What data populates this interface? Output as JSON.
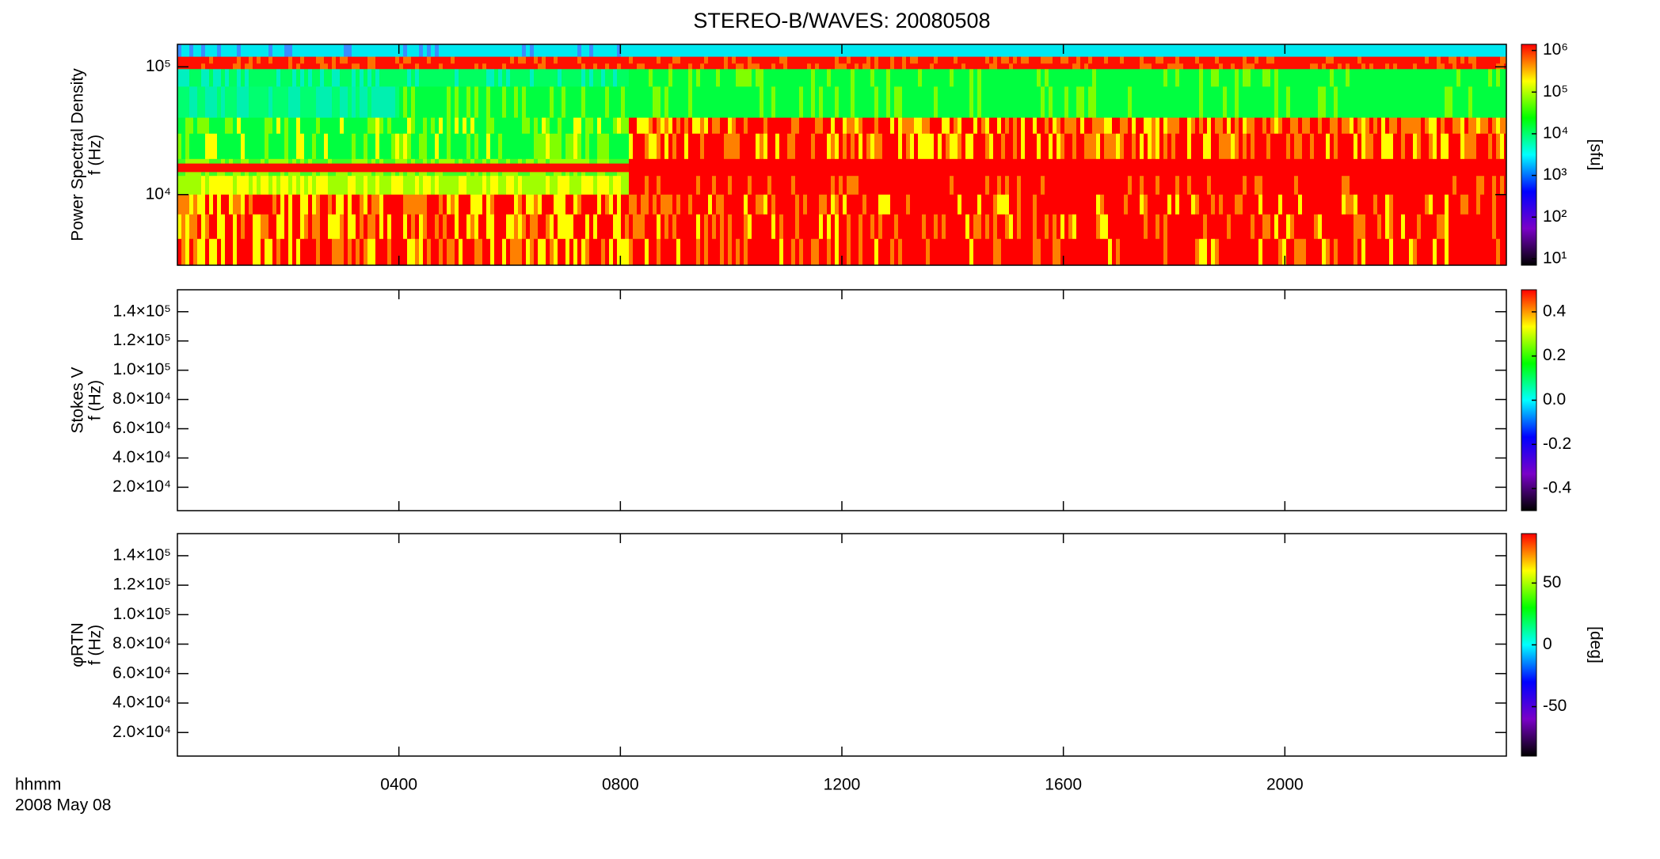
{
  "chart_data": [
    {
      "type": "spectrogram",
      "title": "STEREO-B/WAVES: 20080508",
      "ylabel": [
        "Power Spectral Density",
        "f (Hz)"
      ],
      "ylog": true,
      "ylim": [
        2800,
        150000
      ],
      "yticks": [
        {
          "value": 10000,
          "label": "10⁴"
        },
        {
          "value": 100000,
          "label": "10⁵"
        }
      ],
      "xlim": [
        0,
        24
      ],
      "xticks": [
        4,
        8,
        12,
        16,
        20
      ],
      "colorbar": {
        "clog": true,
        "clim": [
          7,
          1400000
        ],
        "cticks": [
          {
            "value": 10,
            "label": "10¹"
          },
          {
            "value": 100,
            "label": "10²"
          },
          {
            "value": 1000,
            "label": "10³"
          },
          {
            "value": 10000,
            "label": "10⁴"
          },
          {
            "value": 100000,
            "label": "10⁵"
          },
          {
            "value": 1000000,
            "label": "10⁶"
          }
        ],
        "label": "[sfu]",
        "colors": [
          "#000000",
          "#7a00c8",
          "#0000ff",
          "#00ffff",
          "#00ff00",
          "#ffff00",
          "#ff0000"
        ]
      }
    },
    {
      "type": "spectrogram",
      "ylabel": [
        "Stokes V",
        "f (Hz)"
      ],
      "ylog": false,
      "ylim": [
        4000,
        155000
      ],
      "yticks": [
        {
          "value": 20000,
          "label": "2.0×10⁴"
        },
        {
          "value": 40000,
          "label": "4.0×10⁴"
        },
        {
          "value": 60000,
          "label": "6.0×10⁴"
        },
        {
          "value": 80000,
          "label": "8.0×10⁴"
        },
        {
          "value": 100000,
          "label": "1.0×10⁵"
        },
        {
          "value": 120000,
          "label": "1.2×10⁵"
        },
        {
          "value": 140000,
          "label": "1.4×10⁵"
        }
      ],
      "xlim": [
        0,
        24
      ],
      "xticks": [
        4,
        8,
        12,
        16,
        20
      ],
      "colorbar": {
        "clog": false,
        "clim": [
          -0.5,
          0.5
        ],
        "cticks": [
          -0.4,
          -0.2,
          {
            "value": 0,
            "label": "0.0"
          },
          0.2,
          0.4
        ],
        "colors": [
          "#000000",
          "#7a00c8",
          "#0000ff",
          "#00ffff",
          "#00ff00",
          "#ffff00",
          "#ff0000"
        ]
      }
    },
    {
      "type": "spectrogram",
      "ylabel": [
        "φRTN",
        "f (Hz)"
      ],
      "ylog": false,
      "ylim": [
        4000,
        155000
      ],
      "yticks": [
        {
          "value": 20000,
          "label": "2.0×10⁴"
        },
        {
          "value": 40000,
          "label": "4.0×10⁴"
        },
        {
          "value": 60000,
          "label": "6.0×10⁴"
        },
        {
          "value": 80000,
          "label": "8.0×10⁴"
        },
        {
          "value": 100000,
          "label": "1.0×10⁵"
        },
        {
          "value": 120000,
          "label": "1.2×10⁵"
        },
        {
          "value": 140000,
          "label": "1.4×10⁵"
        }
      ],
      "xlim": [
        0,
        24
      ],
      "xticks": [
        {
          "value": 4,
          "label": "0400"
        },
        {
          "value": 8,
          "label": "0800"
        },
        {
          "value": 12,
          "label": "1200"
        },
        {
          "value": 16,
          "label": "1600"
        },
        {
          "value": 20,
          "label": "2000"
        }
      ],
      "xlabel": "hhmm",
      "date_label": "2008 May 08",
      "colorbar": {
        "clog": false,
        "clim": [
          -90,
          90
        ],
        "cticks": [
          -50,
          0,
          50
        ],
        "label": "[deg]",
        "colors": [
          "#000000",
          "#7a00c8",
          "#0000ff",
          "#00ffff",
          "#00ff00",
          "#ffff00",
          "#ff0000"
        ]
      }
    }
  ]
}
